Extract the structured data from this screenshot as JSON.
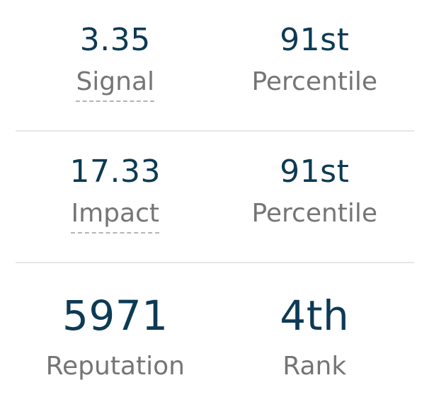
{
  "stats": {
    "signal": {
      "value": "3.35",
      "label": "Signal"
    },
    "signal_percentile": {
      "value": "91st",
      "label": "Percentile"
    },
    "impact": {
      "value": "17.33",
      "label": "Impact"
    },
    "impact_percentile": {
      "value": "91st",
      "label": "Percentile"
    },
    "reputation": {
      "value": "5971",
      "label": "Reputation"
    },
    "rank": {
      "value": "4th",
      "label": "Rank"
    }
  }
}
